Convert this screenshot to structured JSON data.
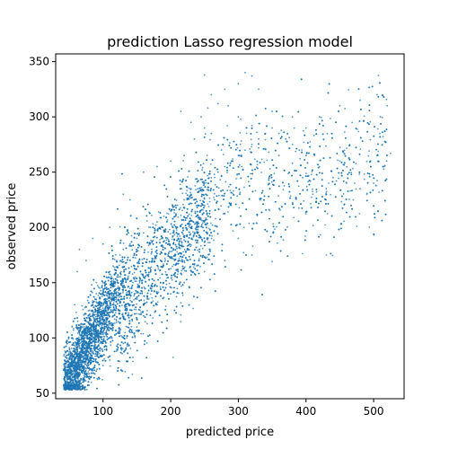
{
  "chart_data": {
    "type": "scatter",
    "title": "prediction Lasso regression model",
    "xlabel": "predicted price",
    "ylabel": "observed price",
    "xlim": [
      30,
      545
    ],
    "ylim": [
      45,
      357
    ],
    "xticks": [
      100,
      200,
      300,
      400,
      500
    ],
    "yticks": [
      50,
      100,
      150,
      200,
      250,
      300,
      350
    ],
    "grid": false,
    "legend": "none",
    "marker_color": "#1f77b4",
    "series": [
      {
        "points_sample": [
          [
            45,
            55
          ],
          [
            48,
            60
          ],
          [
            50,
            65
          ],
          [
            52,
            70
          ],
          [
            55,
            75
          ],
          [
            58,
            80
          ],
          [
            60,
            85
          ],
          [
            62,
            90
          ],
          [
            65,
            95
          ],
          [
            68,
            100
          ],
          [
            70,
            105
          ],
          [
            72,
            110
          ],
          [
            75,
            115
          ],
          [
            78,
            120
          ],
          [
            80,
            125
          ],
          [
            85,
            130
          ],
          [
            88,
            135
          ],
          [
            90,
            140
          ],
          [
            95,
            145
          ],
          [
            100,
            150
          ],
          [
            105,
            155
          ],
          [
            110,
            160
          ],
          [
            115,
            165
          ],
          [
            120,
            170
          ],
          [
            125,
            175
          ],
          [
            130,
            180
          ],
          [
            140,
            185
          ],
          [
            150,
            190
          ],
          [
            160,
            195
          ],
          [
            170,
            200
          ],
          [
            180,
            205
          ],
          [
            190,
            210
          ],
          [
            200,
            215
          ],
          [
            210,
            220
          ],
          [
            220,
            225
          ],
          [
            230,
            230
          ],
          [
            240,
            235
          ],
          [
            250,
            240
          ],
          [
            260,
            245
          ],
          [
            270,
            250
          ],
          [
            280,
            255
          ],
          [
            290,
            260
          ],
          [
            300,
            265
          ],
          [
            310,
            270
          ],
          [
            320,
            275
          ],
          [
            330,
            280
          ],
          [
            340,
            285
          ],
          [
            350,
            290
          ],
          [
            360,
            285
          ],
          [
            370,
            280
          ],
          [
            380,
            275
          ],
          [
            390,
            270
          ],
          [
            400,
            265
          ],
          [
            420,
            255
          ],
          [
            440,
            245
          ],
          [
            460,
            240
          ],
          [
            480,
            235
          ],
          [
            500,
            240
          ],
          [
            510,
            300
          ],
          [
            520,
            310
          ],
          [
            505,
            320
          ],
          [
            480,
            315
          ],
          [
            450,
            310
          ],
          [
            420,
            300
          ],
          [
            400,
            290
          ],
          [
            380,
            300
          ],
          [
            350,
            305
          ],
          [
            330,
            325
          ],
          [
            300,
            330
          ],
          [
            280,
            325
          ],
          [
            260,
            320
          ],
          [
            250,
            338
          ],
          [
            310,
            340
          ],
          [
            320,
            337
          ],
          [
            215,
            305
          ],
          [
            230,
            295
          ],
          [
            245,
            300
          ],
          [
            260,
            285
          ],
          [
            275,
            270
          ],
          [
            290,
            260
          ],
          [
            305,
            255
          ],
          [
            265,
            225
          ],
          [
            300,
            190
          ],
          [
            320,
            175
          ],
          [
            280,
            170
          ],
          [
            250,
            160
          ],
          [
            220,
            150
          ],
          [
            200,
            140
          ],
          [
            180,
            130
          ],
          [
            160,
            120
          ],
          [
            150,
            110
          ],
          [
            140,
            105
          ],
          [
            130,
            95
          ],
          [
            120,
            88
          ],
          [
            110,
            80
          ],
          [
            100,
            75
          ],
          [
            90,
            70
          ],
          [
            80,
            65
          ],
          [
            70,
            60
          ],
          [
            60,
            57
          ],
          [
            55,
            100
          ],
          [
            58,
            130
          ],
          [
            62,
            160
          ],
          [
            65,
            180
          ],
          [
            75,
            170
          ],
          [
            85,
            190
          ],
          [
            100,
            185
          ],
          [
            110,
            200
          ],
          [
            130,
            230
          ],
          [
            140,
            225
          ],
          [
            160,
            250
          ],
          [
            180,
            255
          ],
          [
            200,
            260
          ],
          [
            220,
            265
          ],
          [
            235,
            280
          ],
          [
            250,
            290
          ],
          [
            470,
            225
          ],
          [
            490,
            230
          ],
          [
            505,
            265
          ],
          [
            525,
            267
          ],
          [
            430,
            235
          ],
          [
            410,
            230
          ],
          [
            395,
            245
          ],
          [
            380,
            258
          ],
          [
            360,
            265
          ],
          [
            345,
            268
          ],
          [
            330,
            272
          ],
          [
            320,
            292
          ],
          [
            300,
            300
          ],
          [
            285,
            310
          ],
          [
            270,
            312
          ],
          [
            255,
            308
          ]
        ]
      }
    ]
  }
}
